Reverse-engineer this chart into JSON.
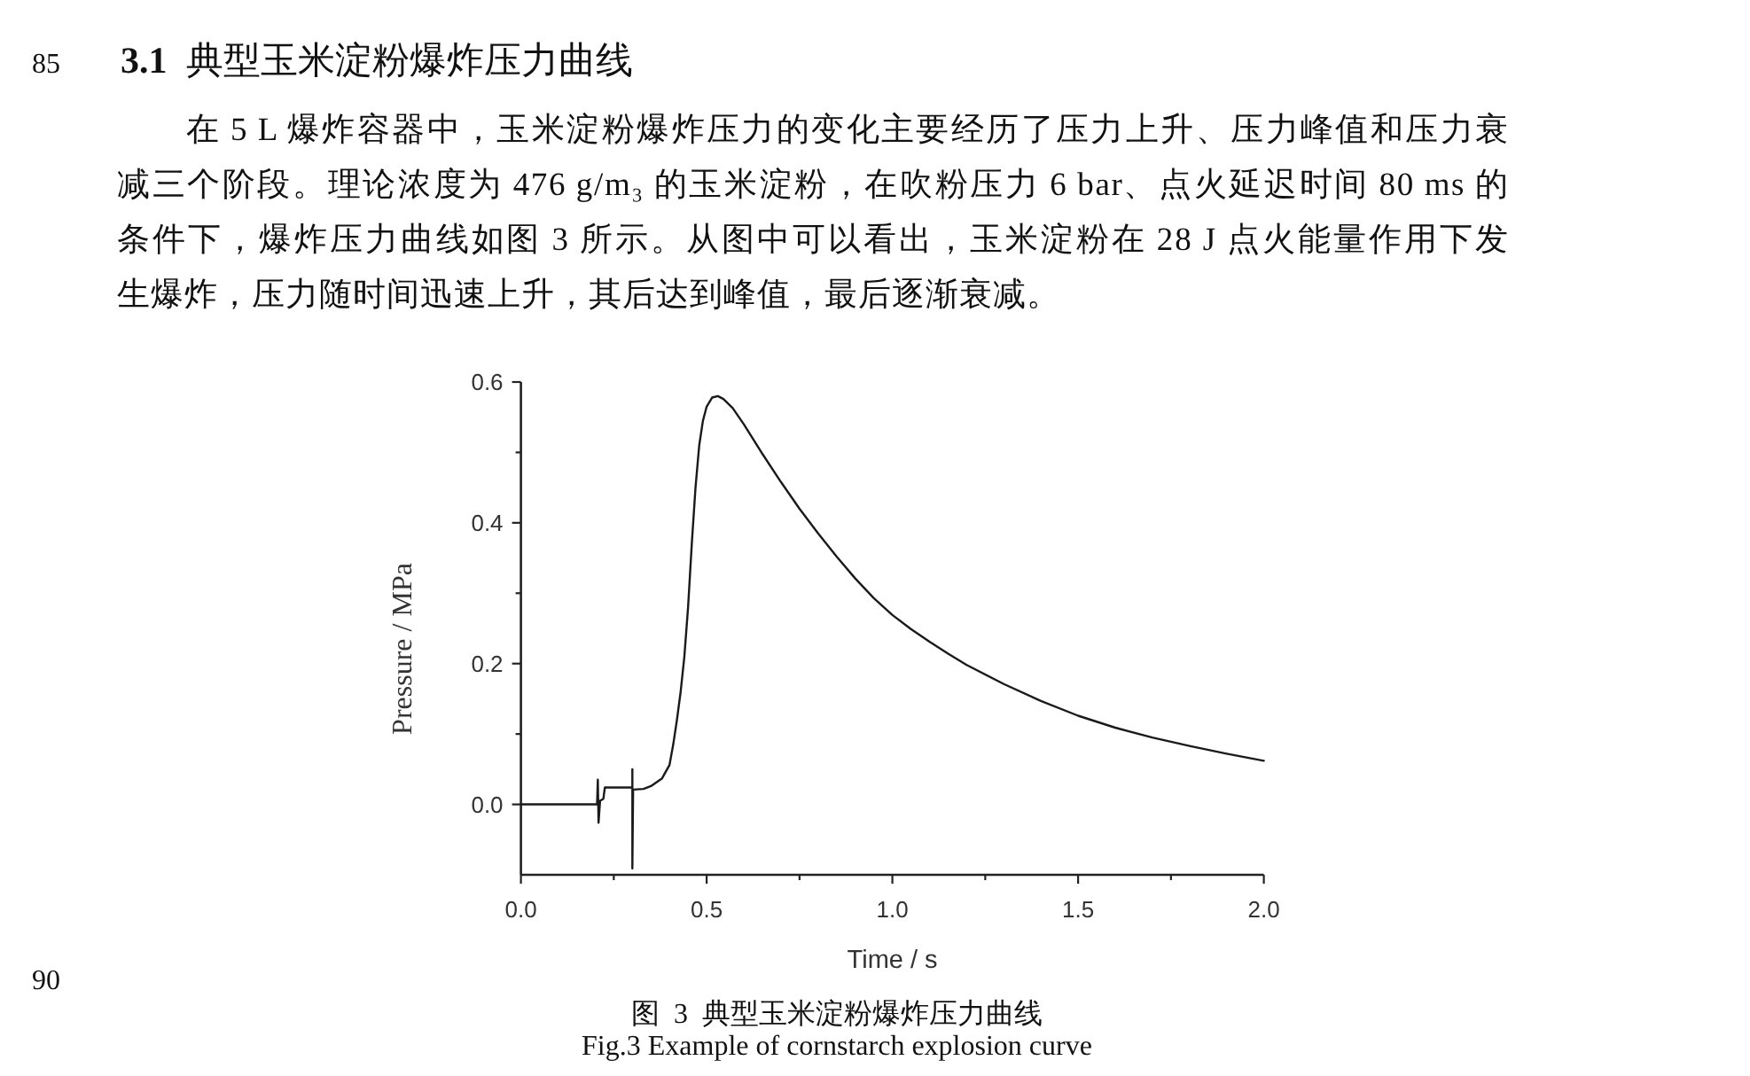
{
  "chart_data": {
    "type": "line",
    "title": "图  3  典型玉米淀粉爆炸压力曲线",
    "subtitle": "Fig.3 Example of cornstarch explosion curve",
    "xlabel": "Time / s",
    "ylabel": "Pressure / MPa",
    "annotations": [
      "85",
      "3.1  典型玉米淀粉爆炸压力曲线",
      "在 5 L 爆炸容器中，玉米淀粉爆炸压力的变化主要经历了压力上升、压力峰值和压力衰",
      "减三个阶段。理论浓度为 476 g/m₃ 的玉米淀粉，在吹粉压力 6 bar、点火延迟时间 80 ms 的",
      "条件下，爆炸压力曲线如图 3 所示。从图中可以看出，玉米淀粉在 28 J 点火能量作用下发",
      "生爆炸，压力随时间迅速上升，其后达到峰值，最后逐渐衰减。",
      "90"
    ],
    "x": [
      0,
      0.205,
      0.207,
      0.209,
      0.213,
      0.222,
      0.226,
      0.3,
      0.3,
      0.3,
      0.302,
      0.33,
      0.35,
      0.38,
      0.4,
      0.41,
      0.42,
      0.43,
      0.44,
      0.45,
      0.46,
      0.47,
      0.48,
      0.49,
      0.5,
      0.515,
      0.53,
      0.545,
      0.57,
      0.6,
      0.65,
      0.7,
      0.75,
      0.8,
      0.85,
      0.9,
      0.95,
      1.0,
      1.05,
      1.1,
      1.15,
      1.2,
      1.3,
      1.4,
      1.5,
      1.6,
      1.7,
      1.8,
      1.9,
      2.0
    ],
    "values": [
      0,
      0,
      0.035,
      -0.026,
      0.005,
      0.008,
      0.024,
      0.024,
      0.05,
      -0.091,
      0.021,
      0.022,
      0.026,
      0.037,
      0.056,
      0.085,
      0.12,
      0.16,
      0.21,
      0.28,
      0.37,
      0.45,
      0.51,
      0.545,
      0.565,
      0.578,
      0.58,
      0.576,
      0.563,
      0.54,
      0.498,
      0.458,
      0.42,
      0.385,
      0.352,
      0.321,
      0.293,
      0.269,
      0.249,
      0.231,
      0.214,
      0.198,
      0.171,
      0.147,
      0.126,
      0.109,
      0.095,
      0.083,
      0.072,
      0.062
    ],
    "color": "#1a1a1a",
    "xlim": [
      0,
      2
    ],
    "ylim": [
      -0.1,
      0.6
    ],
    "xticks": [
      {
        "value": 0,
        "label": "0.0"
      },
      {
        "value": 0.25,
        "label": null
      },
      0.5,
      {
        "value": 0.75,
        "label": null
      },
      {
        "value": 1,
        "label": "1.0"
      },
      {
        "value": 1.25,
        "label": null
      },
      1.5,
      {
        "value": 1.75,
        "label": null
      },
      {
        "value": 2,
        "label": "2.0"
      }
    ],
    "yticks": [
      {
        "value": 0,
        "label": "0.0"
      },
      {
        "value": 0.1,
        "label": null
      },
      0.2,
      {
        "value": 0.3,
        "label": null
      },
      0.4,
      {
        "value": 0.5,
        "label": null
      },
      0.6
    ]
  }
}
